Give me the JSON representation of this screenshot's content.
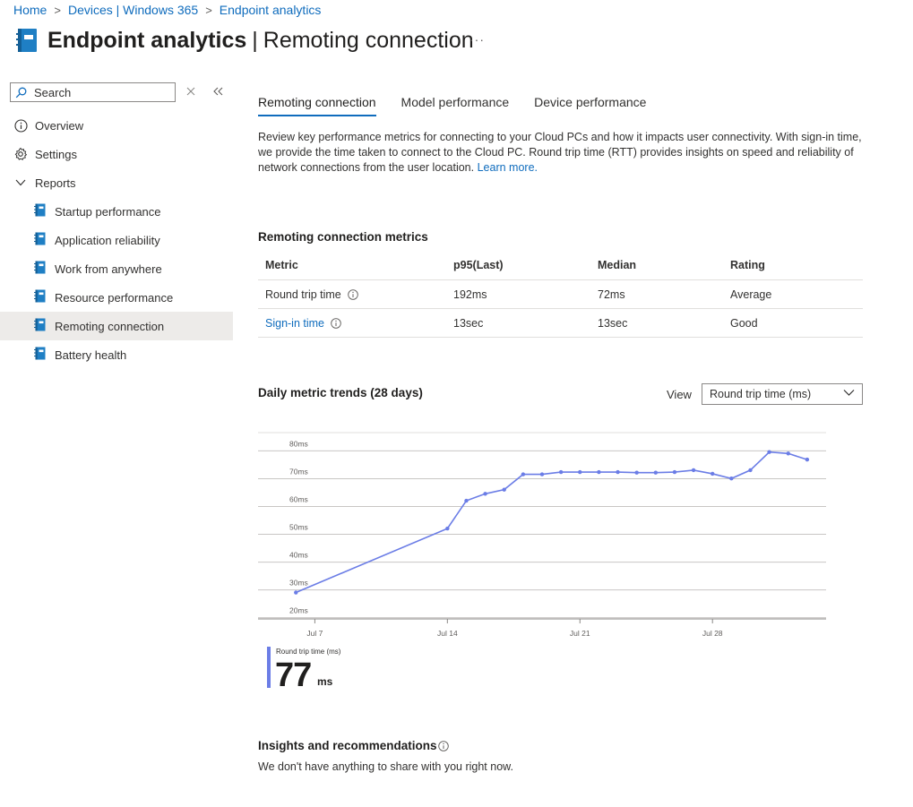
{
  "breadcrumb": [
    "Home",
    "Devices | Windows 365",
    "Endpoint analytics"
  ],
  "header": {
    "title_bold": "Endpoint analytics",
    "title_rest": "Remoting connection",
    "more": "···"
  },
  "sidebar": {
    "search_placeholder": "Search",
    "items": [
      {
        "label": "Overview",
        "icon": "info-icon"
      },
      {
        "label": "Settings",
        "icon": "gear-icon"
      },
      {
        "label": "Reports",
        "icon": "chevron-down-icon"
      }
    ],
    "reports": [
      "Startup performance",
      "Application reliability",
      "Work from anywhere",
      "Resource performance",
      "Remoting connection",
      "Battery health"
    ],
    "active": "Remoting connection"
  },
  "tabs": [
    "Remoting connection",
    "Model performance",
    "Device performance"
  ],
  "description": {
    "text": "Review key performance metrics for connecting to your Cloud PCs and how it impacts user connectivity. With sign-in time, we provide the time taken to connect to the Cloud PC. Round trip time (RTT) provides insights on speed and reliability of network connections from the user location.",
    "link": "Learn more."
  },
  "metrics": {
    "title": "Remoting connection metrics",
    "headers": [
      "Metric",
      "p95(Last)",
      "Median",
      "Rating"
    ],
    "rows": [
      {
        "metric": "Round trip time",
        "p95": "192ms",
        "median": "72ms",
        "rating": "Average"
      },
      {
        "metric": "Sign-in time",
        "p95": "13sec",
        "median": "13sec",
        "rating": "Good"
      }
    ]
  },
  "trends": {
    "title": "Daily metric trends (28 days)",
    "view_label": "View",
    "view_selected": "Round trip time (ms)"
  },
  "chart_data": {
    "type": "line",
    "title": "",
    "xlabel": "",
    "ylabel": "",
    "x_ticks": [
      "Jul 7",
      "Jul 14",
      "Jul 21",
      "Jul 28"
    ],
    "y_ticks": [
      "20ms",
      "30ms",
      "40ms",
      "50ms",
      "60ms",
      "70ms",
      "80ms"
    ],
    "ylim": [
      17,
      84
    ],
    "xlim": [
      "Jul 4",
      "Aug 3"
    ],
    "grid": true,
    "color": "#6b7de6",
    "series": [
      {
        "x": [
          "Jul 6",
          "Jul 14",
          "Jul 15",
          "Jul 16",
          "Jul 17",
          "Jul 18",
          "Jul 19",
          "Jul 20",
          "Jul 21",
          "Jul 22",
          "Jul 23",
          "Jul 24",
          "Jul 25",
          "Jul 26",
          "Jul 27",
          "Jul 28",
          "Jul 29",
          "Jul 30",
          "Jul 31",
          "Aug 1",
          "Aug 2"
        ],
        "values": [
          26.5,
          49.5,
          59.5,
          62,
          63.5,
          69,
          69,
          69.8,
          69.8,
          69.8,
          69.8,
          69.6,
          69.6,
          69.8,
          70.5,
          69.2,
          67.5,
          70.5,
          77,
          76.5,
          74.3
        ]
      }
    ]
  },
  "kpi": {
    "label": "Round trip time (ms)",
    "value": "77",
    "unit": "ms"
  },
  "insights": {
    "title": "Insights and recommendations",
    "text": "We don't have anything to share with you right now."
  }
}
